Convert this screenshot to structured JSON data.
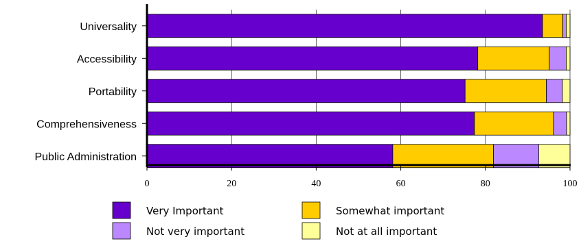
{
  "chart_data": {
    "type": "bar",
    "orientation": "horizontal",
    "stacked": true,
    "categories": [
      "Universality",
      "Accessibility",
      "Portability",
      "Comprehensiveness",
      "Public Administration"
    ],
    "series": [
      {
        "name": "Very Important",
        "color": "#6600cc",
        "values": [
          93.5,
          78.2,
          75.2,
          77.4,
          58.1
        ]
      },
      {
        "name": "Somewhat important",
        "color": "#ffcc00",
        "values": [
          4.8,
          16.9,
          19.2,
          18.7,
          23.8
        ]
      },
      {
        "name": "Not very important",
        "color": "#bb88ff",
        "values": [
          0.8,
          4.0,
          3.8,
          3.1,
          10.7
        ]
      },
      {
        "name": "Not at all important",
        "color": "#ffff99",
        "values": [
          0.9,
          0.9,
          1.8,
          0.8,
          7.4
        ]
      }
    ],
    "xlim": [
      0,
      100
    ],
    "xticks": [
      0,
      20,
      40,
      60,
      80,
      100
    ],
    "grid": "vertical",
    "legend_position": "bottom"
  }
}
